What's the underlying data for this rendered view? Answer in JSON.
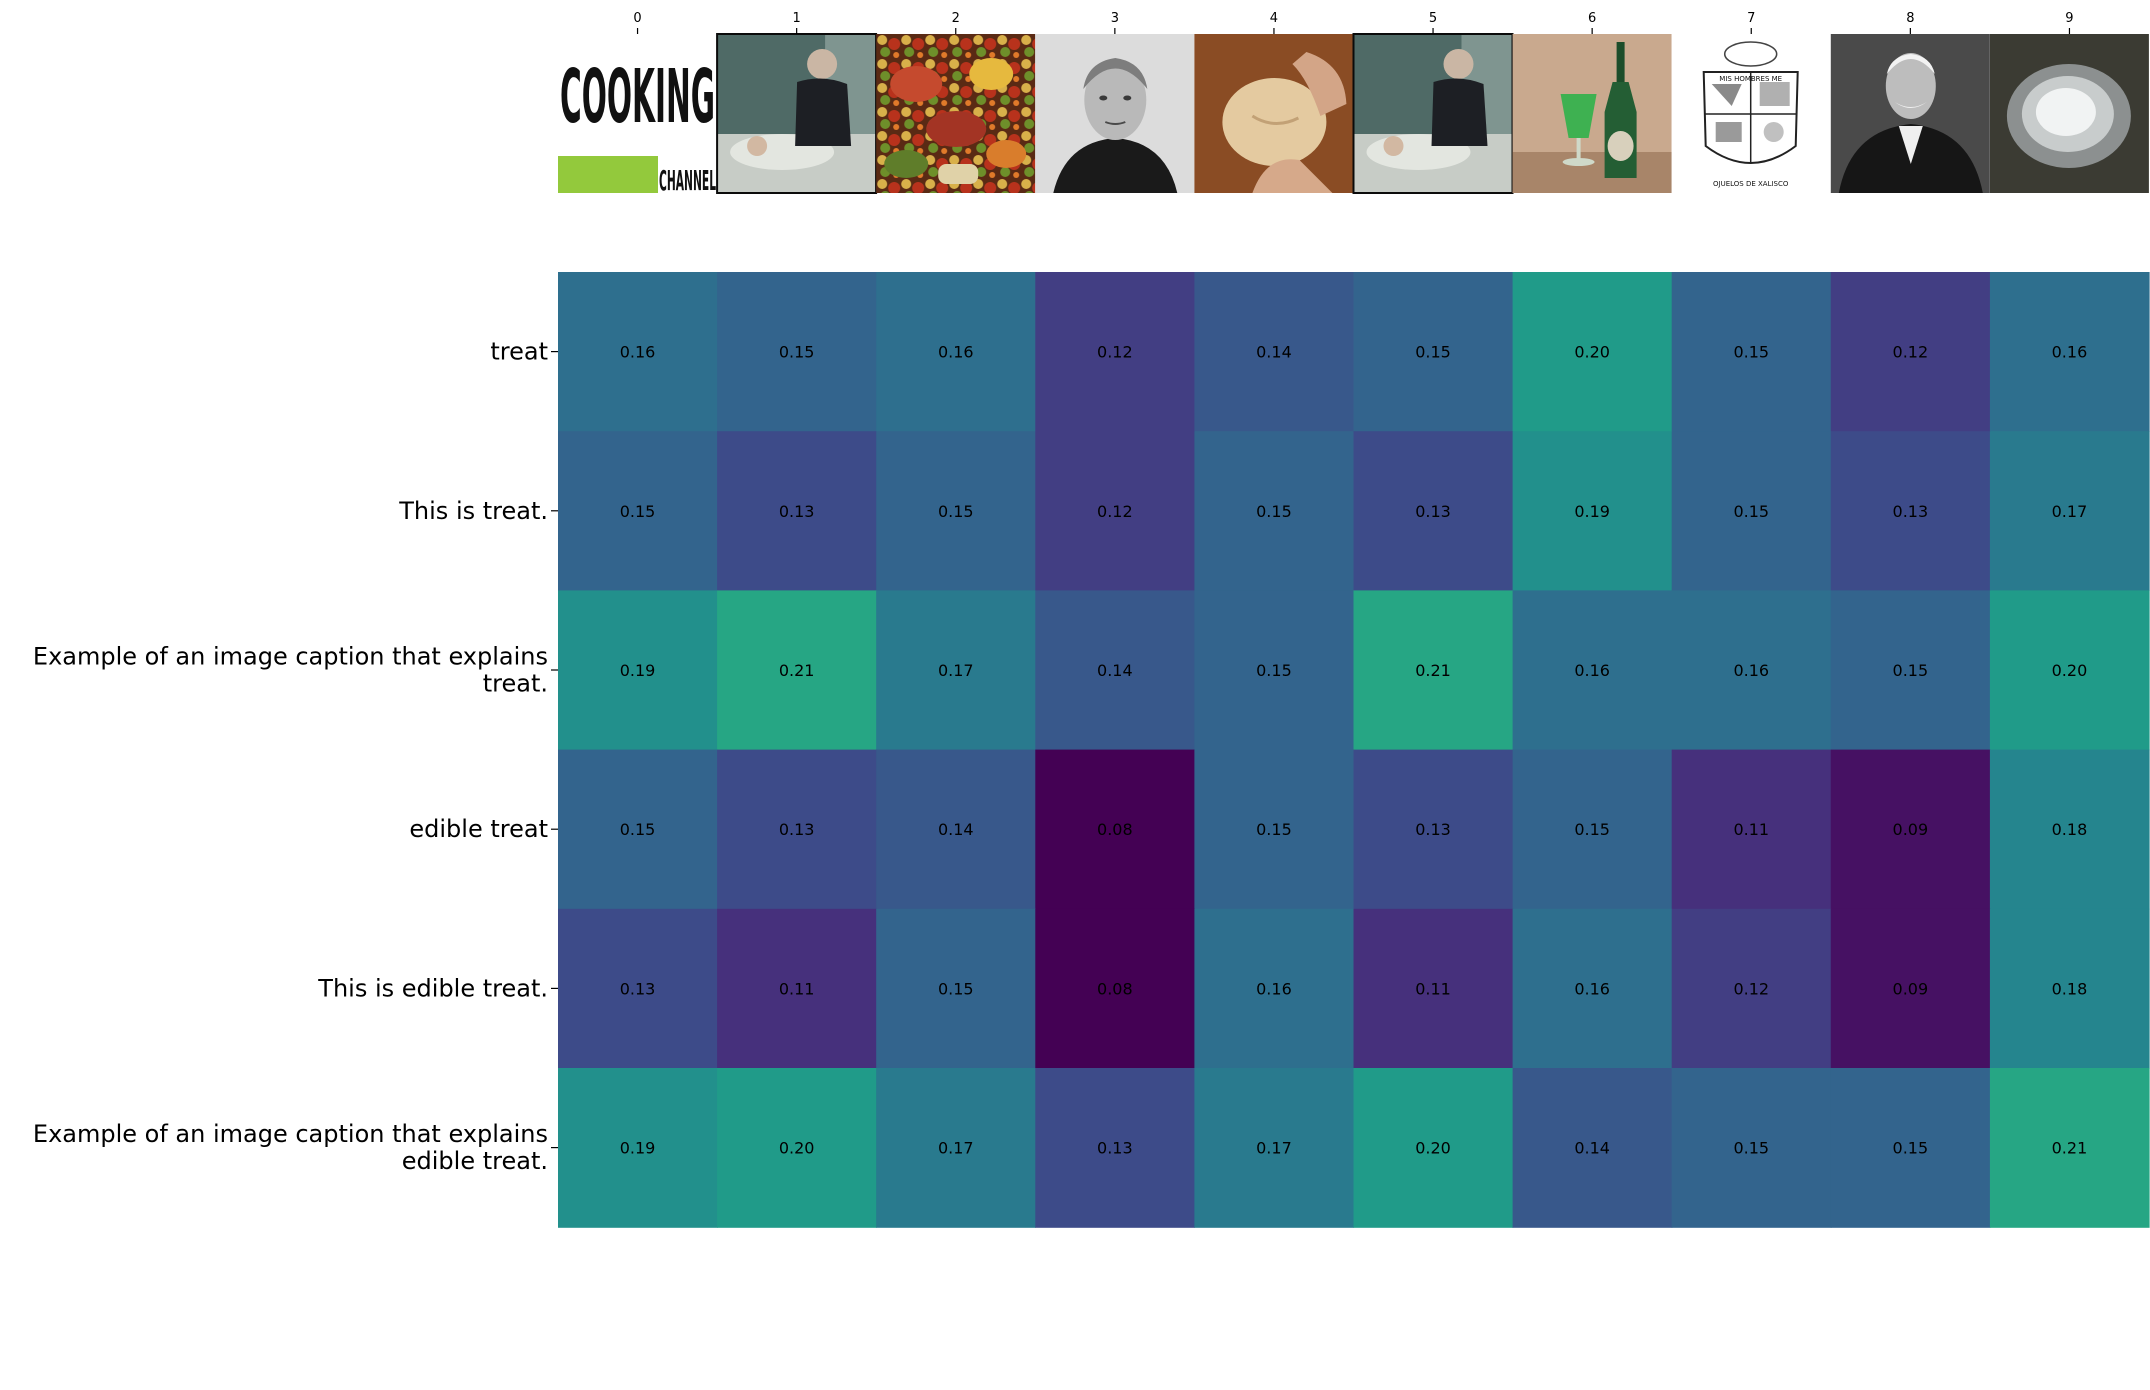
{
  "chart_data": {
    "type": "heatmap",
    "title": "",
    "xlabel": "",
    "ylabel": "",
    "x": [
      "0",
      "1",
      "2",
      "3",
      "4",
      "5",
      "6",
      "7",
      "8",
      "9"
    ],
    "y": [
      "treat",
      "This is treat.",
      "Example of an image caption that explains treat.",
      "edible treat",
      "This is edible treat.",
      "Example of an image caption that explains edible treat."
    ],
    "y_display": [
      [
        "treat"
      ],
      [
        "This is treat."
      ],
      [
        "Example of an image caption that explains",
        "treat."
      ],
      [
        "edible treat"
      ],
      [
        "This is edible treat."
      ],
      [
        "Example of an image caption that explains",
        "edible treat."
      ]
    ],
    "values": [
      [
        0.16,
        0.15,
        0.16,
        0.12,
        0.14,
        0.15,
        0.2,
        0.15,
        0.12,
        0.16
      ],
      [
        0.15,
        0.13,
        0.15,
        0.12,
        0.15,
        0.13,
        0.19,
        0.15,
        0.13,
        0.17
      ],
      [
        0.19,
        0.21,
        0.17,
        0.14,
        0.15,
        0.21,
        0.16,
        0.16,
        0.15,
        0.2
      ],
      [
        0.15,
        0.13,
        0.14,
        0.08,
        0.15,
        0.13,
        0.15,
        0.11,
        0.09,
        0.18
      ],
      [
        0.13,
        0.11,
        0.15,
        0.08,
        0.16,
        0.11,
        0.16,
        0.12,
        0.09,
        0.18
      ],
      [
        0.19,
        0.2,
        0.17,
        0.13,
        0.17,
        0.2,
        0.14,
        0.15,
        0.15,
        0.21
      ]
    ],
    "value_format": "0.00",
    "colormap": "viridis",
    "vmin": 0.08,
    "vmax": 0.3,
    "x_images": [
      {
        "index": 0,
        "description": "Cooking Channel logo: black condensed COOKING text with green bar and CHANNEL",
        "text": [
          "COOKING",
          "CHANNEL"
        ]
      },
      {
        "index": 1,
        "description": "elderly man in hospital bed with visitor in dark jacket"
      },
      {
        "index": 2,
        "description": "assorted food: vegetables, fruit, meat, bread"
      },
      {
        "index": 3,
        "description": "black and white portrait of elderly woman"
      },
      {
        "index": 4,
        "description": "hands shaping dough on wooden board"
      },
      {
        "index": 5,
        "description": "elderly man in hospital bed with visitor in dark jacket"
      },
      {
        "index": 6,
        "description": "green drink in glass next to green bottle"
      },
      {
        "index": 7,
        "description": "black and white municipal coat of arms",
        "text": [
          "MIS HOMBRES ME",
          "OJUELOS DE XALISCO"
        ]
      },
      {
        "index": 8,
        "description": "black and white portrait of elderly man with white moustache in suit"
      },
      {
        "index": 9,
        "description": "white powder on dark background"
      }
    ]
  }
}
